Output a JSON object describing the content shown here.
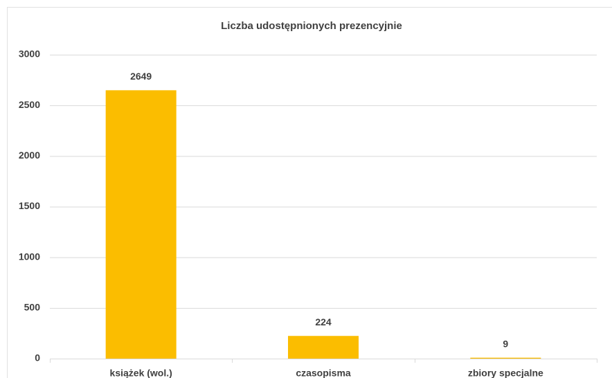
{
  "chart_data": {
    "type": "bar",
    "title": "Liczba udostępnionych prezencyjnie",
    "categories": [
      "książek (wol.)",
      "czasopisma",
      "zbiory specjalne"
    ],
    "values": [
      2649,
      224,
      9
    ],
    "color": "#fbbd00",
    "ylim": [
      0,
      3000
    ],
    "yticks": [
      0,
      500,
      1000,
      1500,
      2000,
      2500,
      3000
    ],
    "grid": true
  }
}
